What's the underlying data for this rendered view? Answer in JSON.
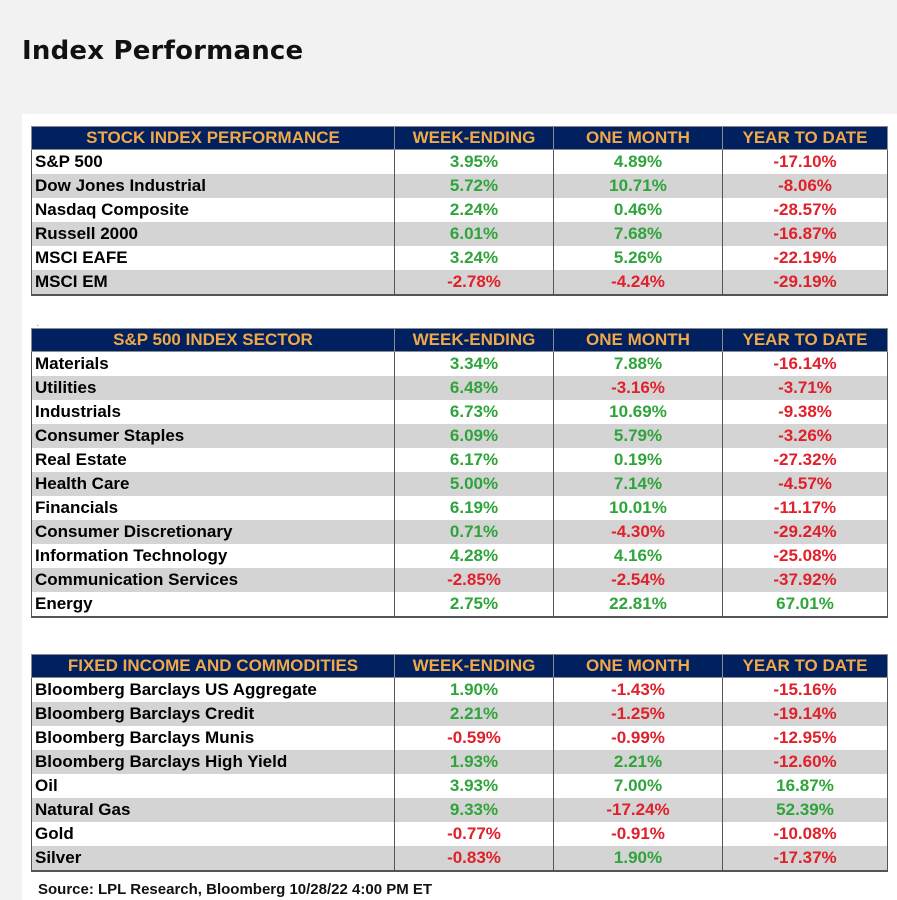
{
  "page": {
    "title": "Index Performance"
  },
  "tables": [
    {
      "headers": [
        "STOCK INDEX PERFORMANCE",
        "WEEK-ENDING",
        "ONE MONTH",
        "YEAR TO DATE"
      ],
      "rows": [
        [
          "S&P 500",
          "3.95%",
          "4.89%",
          "-17.10%"
        ],
        [
          "Dow Jones Industrial",
          "5.72%",
          "10.71%",
          "-8.06%"
        ],
        [
          "Nasdaq Composite",
          "2.24%",
          "0.46%",
          "-28.57%"
        ],
        [
          "Russell 2000",
          "6.01%",
          "7.68%",
          "-16.87%"
        ],
        [
          "MSCI EAFE",
          "3.24%",
          "5.26%",
          "-22.19%"
        ],
        [
          "MSCI EM",
          "-2.78%",
          "-4.24%",
          "-29.19%"
        ]
      ]
    },
    {
      "headers": [
        "S&P 500 INDEX SECTOR",
        "WEEK-ENDING",
        "ONE MONTH",
        "YEAR TO DATE"
      ],
      "rows": [
        [
          "Materials",
          "3.34%",
          "7.88%",
          "-16.14%"
        ],
        [
          "Utilities",
          "6.48%",
          "-3.16%",
          "-3.71%"
        ],
        [
          "Industrials",
          "6.73%",
          "10.69%",
          "-9.38%"
        ],
        [
          "Consumer Staples",
          "6.09%",
          "5.79%",
          "-3.26%"
        ],
        [
          "Real Estate",
          "6.17%",
          "0.19%",
          "-27.32%"
        ],
        [
          "Health Care",
          "5.00%",
          "7.14%",
          "-4.57%"
        ],
        [
          "Financials",
          "6.19%",
          "10.01%",
          "-11.17%"
        ],
        [
          "Consumer Discretionary",
          "0.71%",
          "-4.30%",
          "-29.24%"
        ],
        [
          "Information Technology",
          "4.28%",
          "4.16%",
          "-25.08%"
        ],
        [
          "Communication Services",
          "-2.85%",
          "-2.54%",
          "-37.92%"
        ],
        [
          "Energy",
          "2.75%",
          "22.81%",
          "67.01%"
        ]
      ]
    },
    {
      "headers": [
        "FIXED INCOME AND COMMODITIES",
        "WEEK-ENDING",
        "ONE MONTH",
        "YEAR TO DATE"
      ],
      "rows": [
        [
          "Bloomberg Barclays US Aggregate",
          "1.90%",
          "-1.43%",
          "-15.16%"
        ],
        [
          "Bloomberg Barclays Credit",
          "2.21%",
          "-1.25%",
          "-19.14%"
        ],
        [
          "Bloomberg Barclays Munis",
          "-0.59%",
          "-0.99%",
          "-12.95%"
        ],
        [
          "Bloomberg Barclays High Yield",
          "1.93%",
          "2.21%",
          "-12.60%"
        ],
        [
          "Oil",
          "3.93%",
          "7.00%",
          "16.87%"
        ],
        [
          "Natural Gas",
          "9.33%",
          "-17.24%",
          "52.39%"
        ],
        [
          "Gold",
          "-0.77%",
          "-0.91%",
          "-10.08%"
        ],
        [
          "Silver",
          "-0.83%",
          "1.90%",
          "-17.37%"
        ]
      ]
    }
  ],
  "source": "Source: LPL Research, Bloomberg 10/28/22 4:00 PM ET",
  "colors": {
    "header_bg": "#002060",
    "header_text": "#f0a848",
    "positive": "#2ea43a",
    "negative": "#e0202a",
    "alt_row": "#d4d4d4"
  }
}
